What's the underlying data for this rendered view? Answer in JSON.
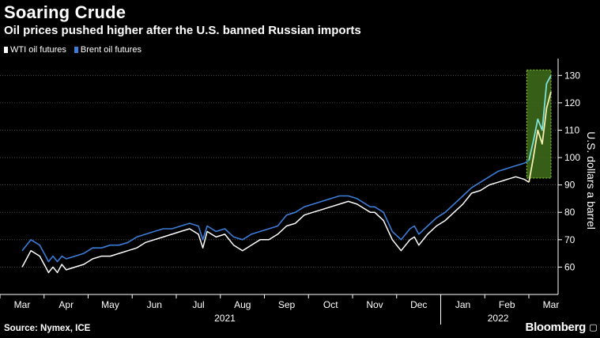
{
  "header": {
    "title": "Soaring Crude",
    "subtitle": "Oil prices pushed higher after the U.S. banned Russian imports"
  },
  "footer": {
    "source": "Source: Nymex, ICE",
    "brand": "Bloomberg"
  },
  "icons": {
    "brand_mark": "bloomberg-terminal-icon"
  },
  "colors": {
    "background": "#000000",
    "wti": "#ffffff",
    "brent": "#3b7dd8",
    "highlight_fill": "#3f6e1a",
    "highlight_border": "#8fcf3a",
    "highlight_wti": "#f3f0b0",
    "highlight_brent": "#7fe0d8"
  },
  "chart_data": {
    "type": "line",
    "ylabel": "U.S. dollars a barrel",
    "ylim": [
      50,
      135
    ],
    "yticks": [
      60,
      70,
      80,
      90,
      100,
      110,
      120,
      130
    ],
    "month_ticks": [
      "Mar",
      "Apr",
      "May",
      "Jun",
      "Jul",
      "Aug",
      "Sep",
      "Oct",
      "Nov",
      "Dec",
      "Jan",
      "Feb",
      "Mar"
    ],
    "years": [
      {
        "label": "2021",
        "center_month": 5
      },
      {
        "label": "2022",
        "center_month": 11
      }
    ],
    "x_unit": "months since March 2021",
    "x_range": [
      0,
      12.2
    ],
    "highlight": {
      "x_start": 11.45,
      "x_end": 12.0,
      "y_start": 92.5,
      "y_end": 132
    },
    "series": [
      {
        "name": "WTI oil futures",
        "key": "wti",
        "x": [
          0,
          0.1,
          0.2,
          0.3,
          0.4,
          0.5,
          0.6,
          0.7,
          0.8,
          0.9,
          1.0,
          1.2,
          1.4,
          1.6,
          1.8,
          2.0,
          2.2,
          2.4,
          2.6,
          2.8,
          3.0,
          3.2,
          3.4,
          3.6,
          3.8,
          4.0,
          4.1,
          4.2,
          4.4,
          4.6,
          4.8,
          5.0,
          5.2,
          5.4,
          5.6,
          5.8,
          6.0,
          6.2,
          6.4,
          6.6,
          6.8,
          7.0,
          7.2,
          7.4,
          7.6,
          7.8,
          7.9,
          8.0,
          8.2,
          8.4,
          8.6,
          8.8,
          8.9,
          9.0,
          9.2,
          9.4,
          9.6,
          9.8,
          10.0,
          10.2,
          10.4,
          10.6,
          10.8,
          11.0,
          11.2,
          11.4,
          11.5,
          11.6,
          11.7,
          11.8,
          11.9,
          12.0
        ],
        "values": [
          60,
          63,
          66,
          65,
          64,
          61,
          58,
          60,
          58,
          61,
          59,
          60,
          61,
          63,
          64,
          64,
          65,
          66,
          67,
          69,
          70,
          71,
          72,
          73,
          74,
          72,
          67,
          73,
          71,
          72,
          68,
          66,
          68,
          70,
          70,
          72,
          75,
          76,
          79,
          80,
          81,
          82,
          83,
          84,
          83,
          81,
          80,
          80,
          77,
          70,
          66,
          70,
          71,
          68,
          72,
          75,
          77,
          80,
          83,
          87,
          88,
          90,
          91,
          92,
          93,
          92,
          91,
          100,
          110,
          105,
          118,
          124
        ]
      },
      {
        "name": "Brent oil futures",
        "key": "brent",
        "x": [
          0,
          0.1,
          0.2,
          0.3,
          0.4,
          0.5,
          0.6,
          0.7,
          0.8,
          0.9,
          1.0,
          1.2,
          1.4,
          1.6,
          1.8,
          2.0,
          2.2,
          2.4,
          2.6,
          2.8,
          3.0,
          3.2,
          3.4,
          3.6,
          3.8,
          4.0,
          4.1,
          4.2,
          4.4,
          4.6,
          4.8,
          5.0,
          5.2,
          5.4,
          5.6,
          5.8,
          6.0,
          6.2,
          6.4,
          6.6,
          6.8,
          7.0,
          7.2,
          7.4,
          7.6,
          7.8,
          7.9,
          8.0,
          8.2,
          8.4,
          8.6,
          8.8,
          8.9,
          9.0,
          9.2,
          9.4,
          9.6,
          9.8,
          10.0,
          10.2,
          10.4,
          10.6,
          10.8,
          11.0,
          11.2,
          11.4,
          11.5,
          11.6,
          11.7,
          11.8,
          11.9,
          12.0
        ],
        "values": [
          66,
          68,
          70,
          69,
          68,
          65,
          62,
          64,
          62,
          64,
          63,
          64,
          65,
          67,
          67,
          68,
          68,
          69,
          71,
          72,
          73,
          74,
          74,
          75,
          76,
          75,
          70,
          75,
          73,
          74,
          71,
          70,
          72,
          73,
          74,
          75,
          79,
          80,
          82,
          83,
          84,
          85,
          86,
          86,
          85,
          83,
          82,
          82,
          80,
          73,
          70,
          74,
          75,
          72,
          75,
          78,
          80,
          83,
          86,
          89,
          91,
          93,
          95,
          96,
          97,
          98,
          99,
          106,
          114,
          110,
          127,
          130
        ]
      }
    ]
  }
}
